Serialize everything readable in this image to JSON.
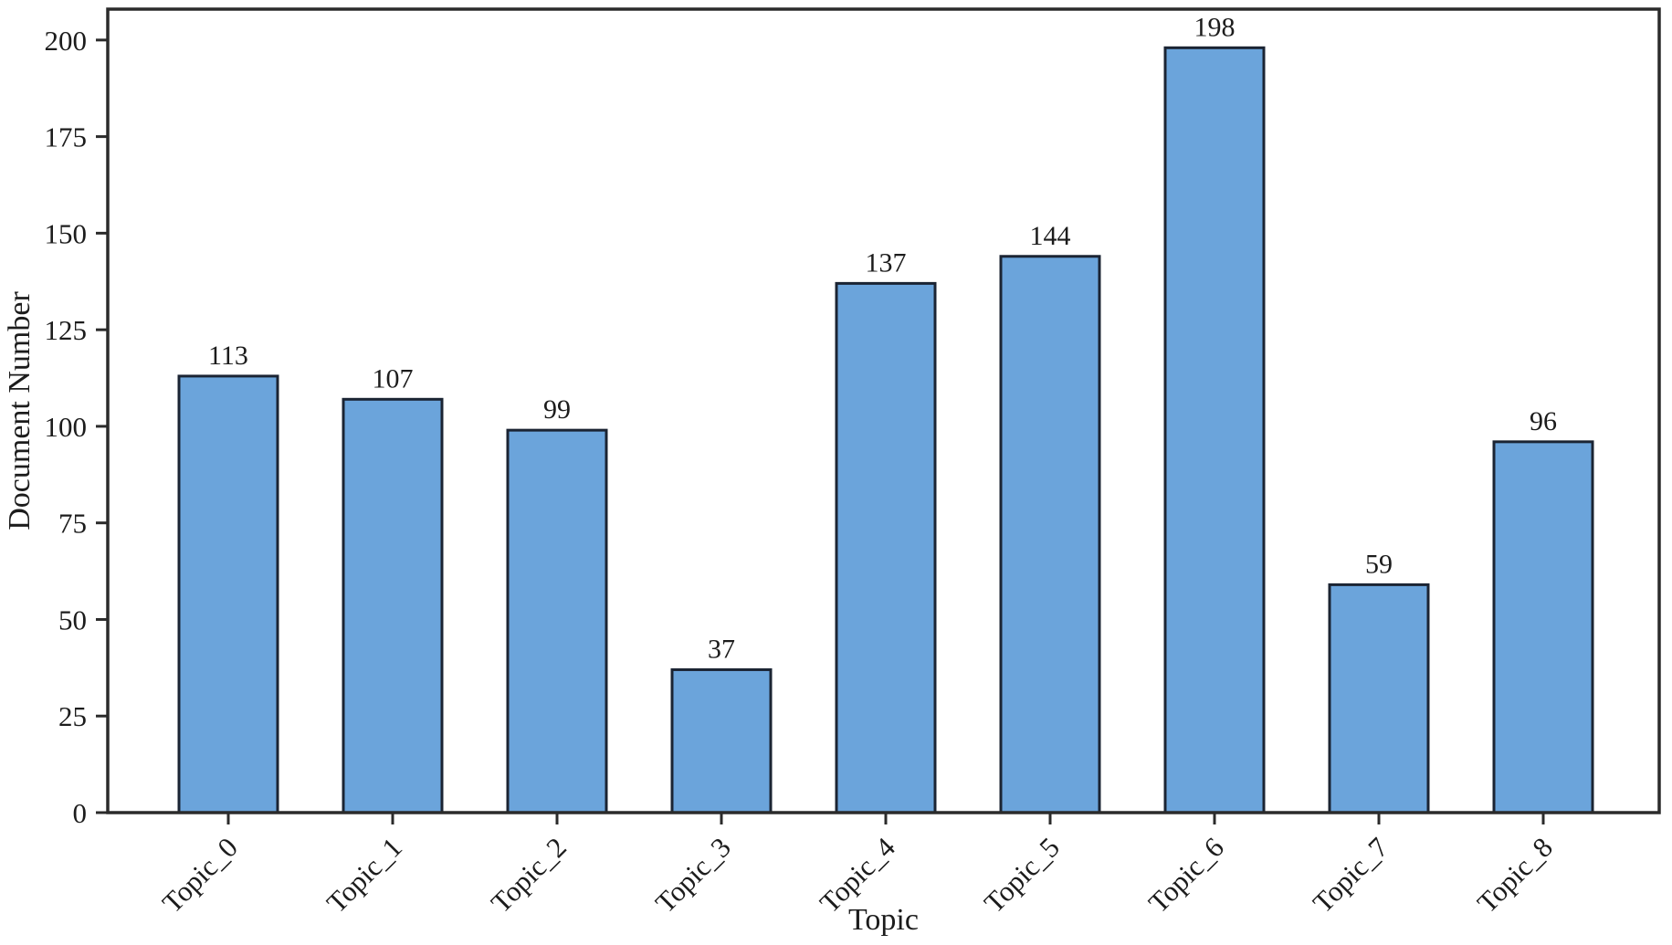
{
  "chart_data": {
    "type": "bar",
    "title": "",
    "xlabel": "Topic",
    "ylabel": "Document Number",
    "categories": [
      "Topic_0",
      "Topic_1",
      "Topic_2",
      "Topic_3",
      "Topic_4",
      "Topic_5",
      "Topic_6",
      "Topic_7",
      "Topic_8"
    ],
    "values": [
      113,
      107,
      99,
      37,
      137,
      144,
      198,
      59,
      96
    ],
    "bar_value_labels": [
      "113",
      "107",
      "99",
      "37",
      "137",
      "144",
      "198",
      "59",
      "96"
    ],
    "ylim": [
      0,
      208
    ],
    "yticks": [
      0,
      25,
      50,
      75,
      100,
      125,
      150,
      175,
      200
    ],
    "ytick_labels": [
      "0",
      "25",
      "50",
      "75",
      "100",
      "125",
      "150",
      "175",
      "200"
    ],
    "grid": false,
    "legend": null,
    "x_tick_rotation_deg": 45,
    "colors": {
      "bar_fill": "#6BA4DB",
      "bar_edge": "#1B2433",
      "spine": "#2B2B2B",
      "tick": "#2B2B2B",
      "text": "#1C1C1C",
      "background": "#FFFFFF"
    }
  }
}
